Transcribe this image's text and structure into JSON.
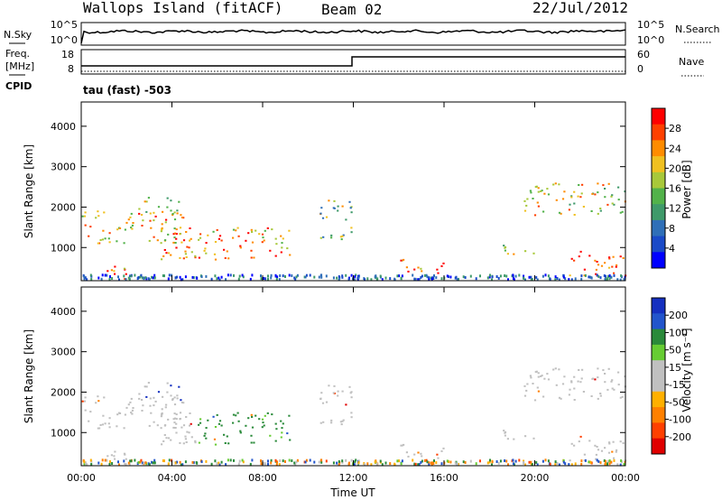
{
  "header": {
    "title": "Wallops Island (fitACF)",
    "beam": "Beam 02",
    "date": "22/Jul/2012"
  },
  "noise_panel": {
    "left_label": "N.Sky",
    "left_ticks": [
      "10^5",
      "10^0"
    ],
    "right_label": "N.Search",
    "right_ticks": [
      "10^5",
      "10^0"
    ]
  },
  "freq_panel": {
    "left_label_1": "Freq.",
    "left_label_2": "[MHz]",
    "left_ticks": [
      "18",
      "8"
    ],
    "right_label": "Nave",
    "right_ticks": [
      "60",
      "0"
    ],
    "cpid_label": "CPID",
    "cpid_value": "tau (fast) -503"
  },
  "colors": {
    "power": [
      "#0000ff",
      "#1a4ac8",
      "#2f6fb8",
      "#3f9a6a",
      "#52b24a",
      "#a8c83a",
      "#f0c020",
      "#ff8c00",
      "#ff4000",
      "#ff0000"
    ],
    "velocity_pos": [
      "#1530c0",
      "#2255cc",
      "#2a8a3a",
      "#66cc33"
    ],
    "velocity_gray": "#c0c0c0",
    "velocity_neg": [
      "#ffb000",
      "#ff8000",
      "#ff4000",
      "#e00000"
    ]
  },
  "chart_data": [
    {
      "type": "heatmap",
      "name": "power",
      "xlabel": "",
      "ylabel": "Slant Range [km]",
      "y_ticks": [
        "1000",
        "2000",
        "3000",
        "4000"
      ],
      "x_ticks": [
        "00:00",
        "04:00",
        "08:00",
        "12:00",
        "16:00",
        "20:00",
        "00:00"
      ],
      "xlim": [
        0,
        24
      ],
      "ylim": [
        180,
        4600
      ],
      "colorbar_label": "Power [dB]",
      "colorbar_ticks": [
        "28",
        "24",
        "20",
        "16",
        "12",
        "8",
        "4"
      ],
      "colorbar_range": [
        0,
        30
      ],
      "echo_regions": [
        {
          "t": [
            0.0,
            4.5
          ],
          "r": [
            1100,
            1900
          ],
          "power": 20
        },
        {
          "t": [
            2.5,
            4.5
          ],
          "r": [
            1800,
            2300
          ],
          "power": 16
        },
        {
          "t": [
            3.5,
            9.5
          ],
          "r": [
            700,
            1500
          ],
          "power": 22
        },
        {
          "t": [
            1.0,
            2.0
          ],
          "r": [
            200,
            700
          ],
          "power": 24
        },
        {
          "t": [
            10.5,
            12.0
          ],
          "r": [
            1200,
            2200
          ],
          "power": 14
        },
        {
          "t": [
            14.0,
            16.0
          ],
          "r": [
            350,
            700
          ],
          "power": 24
        },
        {
          "t": [
            18.5,
            20.0
          ],
          "r": [
            800,
            1100
          ],
          "power": 18
        },
        {
          "t": [
            21.5,
            24.0
          ],
          "r": [
            300,
            900
          ],
          "power": 26
        },
        {
          "t": [
            19.5,
            24.0
          ],
          "r": [
            1800,
            2600
          ],
          "power": 18
        }
      ]
    },
    {
      "type": "heatmap",
      "name": "velocity",
      "xlabel": "Time UT",
      "ylabel": "Slant Range [km]",
      "y_ticks": [
        "1000",
        "2000",
        "3000",
        "4000"
      ],
      "x_ticks": [
        "00:00",
        "04:00",
        "08:00",
        "12:00",
        "16:00",
        "20:00",
        "00:00"
      ],
      "xlim": [
        0,
        24
      ],
      "ylim": [
        180,
        4600
      ],
      "colorbar_label": "Velocity [m s⁻¹]",
      "colorbar_ticks": [
        "200",
        "100",
        "50",
        "15",
        "-15",
        "-50",
        "-100",
        "-200"
      ],
      "colorbar_range": [
        -250,
        250
      ]
    }
  ]
}
